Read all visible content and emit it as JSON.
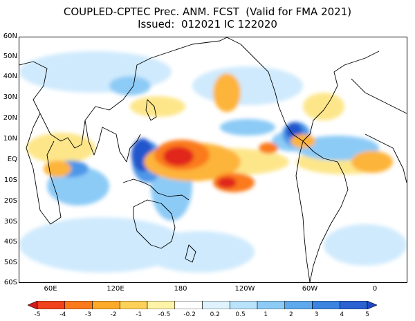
{
  "title": {
    "line1": "COUPLED-CPTEC Prec. ANM. FCST  (Valid for FMA 2021)",
    "line2": "Issued:  012021 IC 122020"
  },
  "y_axis_labels": [
    "60N",
    "50N",
    "40N",
    "30N",
    "20N",
    "10N",
    "EQ",
    "10S",
    "20S",
    "30S",
    "40S",
    "50S",
    "60S"
  ],
  "x_axis_labels": [
    "60E",
    "120E",
    "180",
    "120W",
    "60W",
    "0"
  ],
  "colorbar": {
    "levels": [
      "-5",
      "-4",
      "-3",
      "-2",
      "-1",
      "-0.5",
      "-0.2",
      "0.2",
      "0.5",
      "1",
      "2",
      "3",
      "4",
      "5"
    ],
    "colors": [
      "#d7191c",
      "#f0421b",
      "#fb7a1e",
      "#fda929",
      "#fdd05a",
      "#fff3a8",
      "#ffffff",
      "#dff2fd",
      "#b9e2fb",
      "#8ccbf6",
      "#5ea9ee",
      "#3b84e0",
      "#2a62d2",
      "#1e48c6"
    ]
  },
  "anomaly_palette": {
    "dry_strong": "#e1251c",
    "dry_mid": "#fb7a1e",
    "dry_light": "#fdb43a",
    "dry_pale": "#fde68a",
    "wet_pale": "#cfeafd",
    "wet_light": "#8ccbf6",
    "wet_mid": "#4d97e8",
    "wet_strong": "#2457cc"
  }
}
